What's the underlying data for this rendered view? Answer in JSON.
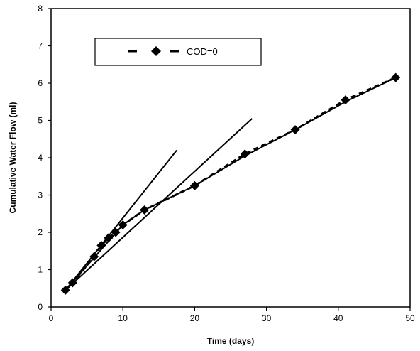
{
  "chart_data": {
    "type": "line",
    "xlabel": "Time (days)",
    "ylabel": "Cumulative Water Flow (ml)",
    "xlim": [
      0,
      50
    ],
    "ylim": [
      0,
      8
    ],
    "xticks": [
      0,
      10,
      20,
      30,
      40,
      50
    ],
    "yticks": [
      0,
      1,
      2,
      3,
      4,
      5,
      6,
      7,
      8
    ],
    "grid": false,
    "legend_position": "top-left",
    "series": [
      {
        "name": "COD=0",
        "style": "dashed-with-diamond-markers",
        "color": "#000000",
        "x": [
          2,
          3,
          6,
          7,
          8,
          9,
          10,
          13,
          20,
          27,
          34,
          41,
          48
        ],
        "y": [
          0.45,
          0.65,
          1.35,
          1.65,
          1.85,
          2.0,
          2.2,
          2.6,
          3.25,
          4.1,
          4.75,
          5.55,
          6.15
        ]
      }
    ],
    "fit_lines": [
      {
        "x": [
          2,
          17.5
        ],
        "y": [
          0.45,
          4.2
        ]
      },
      {
        "x": [
          2,
          28
        ],
        "y": [
          0.45,
          5.05
        ]
      },
      {
        "x": [
          2,
          10,
          13,
          20,
          27,
          34,
          41,
          48
        ],
        "y": [
          0.45,
          2.2,
          2.6,
          3.25,
          4.05,
          4.75,
          5.5,
          6.15
        ]
      }
    ]
  }
}
